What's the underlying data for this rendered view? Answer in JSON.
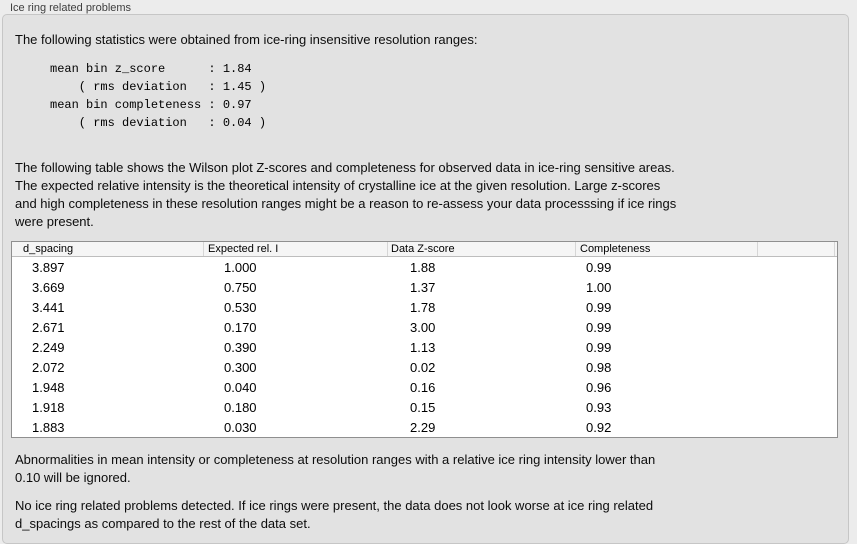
{
  "panel": {
    "title": "Ice ring related problems",
    "intro": "The following statistics were obtained from ice-ring insensitive resolution ranges:",
    "stats_block": "mean bin z_score      : 1.84\n    ( rms deviation   : 1.45 )\nmean bin completeness : 0.97\n    ( rms deviation   : 0.04 )",
    "description_lines": [
      "The following table shows the Wilson plot Z-scores and completeness for observed data in ice-ring sensitive areas.",
      "The expected relative intensity is the theoretical intensity of crystalline ice at the given resolution. Large z-scores",
      "and high completeness in these resolution ranges might be a reason to re-assess your data processsing if ice rings",
      "were present."
    ],
    "table": {
      "columns": [
        "d_spacing",
        "Expected rel. I",
        "Data Z-score",
        "Completeness"
      ],
      "rows": [
        [
          "3.897",
          "1.000",
          "1.88",
          "0.99"
        ],
        [
          "3.669",
          "0.750",
          "1.37",
          "1.00"
        ],
        [
          "3.441",
          "0.530",
          "1.78",
          "0.99"
        ],
        [
          "2.671",
          "0.170",
          "3.00",
          "0.99"
        ],
        [
          "2.249",
          "0.390",
          "1.13",
          "0.99"
        ],
        [
          "2.072",
          "0.300",
          "0.02",
          "0.98"
        ],
        [
          "1.948",
          "0.040",
          "0.16",
          "0.96"
        ],
        [
          "1.918",
          "0.180",
          "0.15",
          "0.93"
        ],
        [
          "1.883",
          "0.030",
          "2.29",
          "0.92"
        ]
      ]
    },
    "note_lines": [
      "Abnormalities in mean intensity or completeness at resolution ranges with a relative ice ring intensity lower than",
      "0.10 will be ignored."
    ],
    "conclusion_lines": [
      "No ice ring related problems detected. If ice rings were present, the data does not look worse at ice ring related",
      "d_spacings as compared to the rest of the data set."
    ]
  }
}
